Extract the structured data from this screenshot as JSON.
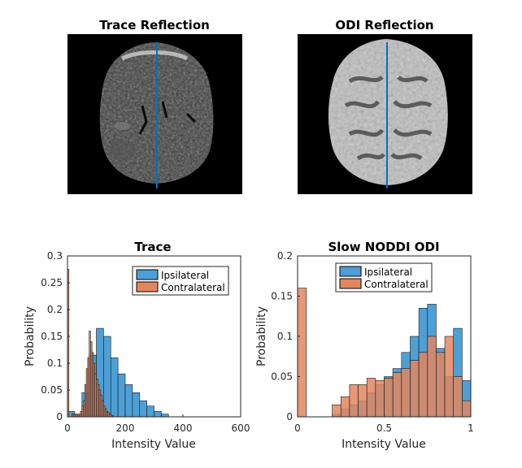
{
  "colors": {
    "ipsilateral": "#4d9fd6",
    "contralateral": "#e2865f",
    "overlap": "#8e4f3f",
    "line": "#0072bd"
  },
  "images": [
    {
      "title": "Trace Reflection"
    },
    {
      "title": "ODI Reflection"
    }
  ],
  "chart_data": [
    {
      "type": "bar",
      "subtype": "overlaid-histogram",
      "title": "Trace",
      "xlabel": "Intensity Value",
      "ylabel": "Probability",
      "xlim": [
        0,
        600
      ],
      "ylim": [
        0,
        0.3
      ],
      "xticks": [
        0,
        200,
        400,
        600
      ],
      "yticks": [
        0,
        0.05,
        0.1,
        0.15,
        0.2,
        0.25,
        0.3
      ],
      "ytick_labels": [
        "0",
        "0.05",
        "0.1",
        "0.15",
        "0.2",
        "0.25",
        "0.3"
      ],
      "legend": "top-right",
      "series": [
        {
          "name": "Ipsilateral",
          "bin_edges": [
            0,
            25,
            50,
            75,
            100,
            125,
            150,
            175,
            200,
            225,
            250,
            275,
            300,
            325,
            350
          ],
          "values": [
            0.01,
            0.005,
            0.045,
            0.115,
            0.165,
            0.15,
            0.11,
            0.08,
            0.06,
            0.045,
            0.03,
            0.02,
            0.01,
            0.005
          ]
        },
        {
          "name": "Contralateral",
          "bin_edges": [
            0,
            5,
            10,
            15,
            20,
            25,
            30,
            35,
            40,
            45,
            50,
            55,
            60,
            65,
            70,
            75,
            80,
            85,
            90,
            95,
            100,
            105,
            110,
            115,
            120,
            125,
            130,
            135,
            140,
            145,
            150,
            155,
            160
          ],
          "values": [
            0.275,
            0.0,
            0.0,
            0.005,
            0.005,
            0.005,
            0.005,
            0.005,
            0.005,
            0.01,
            0.02,
            0.03,
            0.06,
            0.09,
            0.11,
            0.16,
            0.14,
            0.12,
            0.1,
            0.08,
            0.07,
            0.06,
            0.05,
            0.04,
            0.03,
            0.02,
            0.015,
            0.01,
            0.008,
            0.005,
            0.003,
            0.002
          ]
        }
      ]
    },
    {
      "type": "bar",
      "subtype": "overlaid-histogram",
      "title": "Slow NODDI ODI",
      "xlabel": "Intensity Value",
      "ylabel": "Probability",
      "xlim": [
        0,
        1
      ],
      "ylim": [
        0,
        0.2
      ],
      "xticks": [
        0,
        0.5,
        1
      ],
      "xtick_labels": [
        "0",
        "0.5",
        "1"
      ],
      "yticks": [
        0,
        0.05,
        0.1,
        0.15,
        0.2
      ],
      "ytick_labels": [
        "0",
        "0.05",
        "0.1",
        "0.15",
        "0.2"
      ],
      "legend": "top-right",
      "series": [
        {
          "name": "Ipsilateral",
          "bin_edges": [
            0,
            0.05,
            0.1,
            0.15,
            0.2,
            0.25,
            0.3,
            0.35,
            0.4,
            0.45,
            0.5,
            0.55,
            0.6,
            0.65,
            0.7,
            0.75,
            0.8,
            0.85,
            0.9,
            0.95,
            1.0
          ],
          "values": [
            0,
            0,
            0,
            0,
            0.003,
            0.01,
            0.015,
            0.02,
            0.03,
            0.04,
            0.05,
            0.06,
            0.08,
            0.1,
            0.135,
            0.14,
            0.085,
            0.05,
            0.11,
            0.045
          ]
        },
        {
          "name": "Contralateral",
          "bin_edges": [
            0,
            0.05,
            0.1,
            0.15,
            0.2,
            0.25,
            0.3,
            0.35,
            0.4,
            0.45,
            0.5,
            0.55,
            0.6,
            0.65,
            0.7,
            0.75,
            0.8,
            0.85,
            0.9,
            0.95,
            1.0
          ],
          "values": [
            0.16,
            0,
            0,
            0,
            0.015,
            0.025,
            0.04,
            0.04,
            0.048,
            0.045,
            0.048,
            0.055,
            0.06,
            0.07,
            0.08,
            0.1,
            0.08,
            0.1,
            0.05,
            0.02
          ]
        }
      ]
    }
  ]
}
